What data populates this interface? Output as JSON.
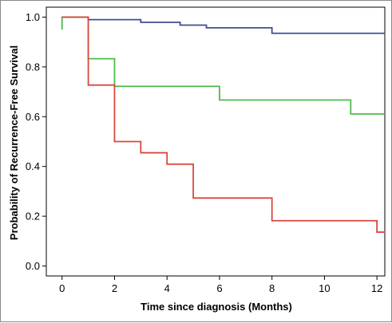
{
  "chart_data": {
    "type": "line",
    "step": true,
    "xlabel": "Time since diagnosis (Months)",
    "ylabel": "Probability of Recurrence-Free Survival",
    "xlim": [
      -0.6,
      12.3
    ],
    "ylim": [
      -0.04,
      1.04
    ],
    "xticks": [
      0,
      2,
      4,
      6,
      8,
      10,
      12
    ],
    "yticks": [
      0.0,
      0.2,
      0.4,
      0.6,
      0.8,
      1.0
    ],
    "ytick_labels": [
      "0.0",
      "0.2",
      "0.4",
      "0.6",
      "0.8",
      "1.0"
    ],
    "grid": false,
    "legend": "none",
    "series": [
      {
        "color": "#3f4f8f",
        "x": [
          0,
          1,
          3,
          4.5,
          5.5,
          8,
          12.3
        ],
        "y": [
          1.0,
          0.99,
          0.979,
          0.968,
          0.957,
          0.935,
          0.935
        ]
      },
      {
        "color": "#4dbb4d",
        "start_y": 0.95,
        "x": [
          0,
          1,
          2,
          6,
          11,
          12.3
        ],
        "y": [
          1.0,
          0.833,
          0.722,
          0.667,
          0.611,
          0.611
        ]
      },
      {
        "color": "#d9473f",
        "x": [
          0,
          1,
          2,
          3,
          4,
          5,
          8,
          12,
          12.3
        ],
        "y": [
          1.0,
          0.727,
          0.5,
          0.455,
          0.409,
          0.273,
          0.182,
          0.136,
          0.136
        ]
      }
    ]
  }
}
